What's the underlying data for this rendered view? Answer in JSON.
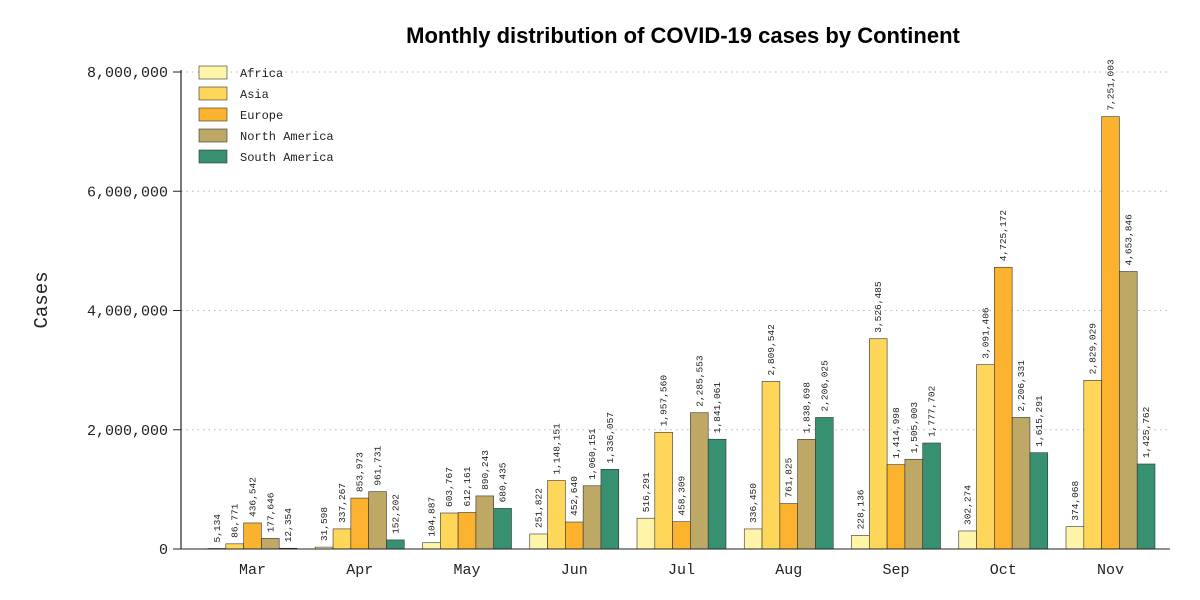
{
  "chart_data": {
    "type": "bar",
    "title": "Monthly distribution of COVID-19 cases by Continent",
    "xlabel": "",
    "ylabel": "Cases",
    "ylim": [
      0,
      8000000
    ],
    "yticks": [
      0,
      2000000,
      4000000,
      6000000,
      8000000
    ],
    "ytick_labels": [
      "0",
      "2,000,000",
      "4,000,000",
      "6,000,000",
      "8,000,000"
    ],
    "grid": true,
    "legend_position": "top-left",
    "categories": [
      "Mar",
      "Apr",
      "May",
      "Jun",
      "Jul",
      "Aug",
      "Sep",
      "Oct",
      "Nov"
    ],
    "series": [
      {
        "name": "Africa",
        "color": "#fff4a8",
        "values": [
          5134,
          31598,
          104887,
          251822,
          516291,
          336450,
          228136,
          302274,
          374068
        ],
        "labels": [
          "5,134",
          "31,598",
          "104,887",
          "251,822",
          "516,291",
          "336,450",
          "228,136",
          "302,274",
          "374,068"
        ]
      },
      {
        "name": "Asia",
        "color": "#fdd65a",
        "values": [
          86771,
          337267,
          603767,
          1148151,
          1957560,
          2809542,
          3526485,
          3091406,
          2829029
        ],
        "labels": [
          "86,771",
          "337,267",
          "603,767",
          "1,148,151",
          "1,957,560",
          "2,809,542",
          "3,526,485",
          "3,091,406",
          "2,829,029"
        ]
      },
      {
        "name": "Europe",
        "color": "#fbb32f",
        "values": [
          436542,
          853973,
          612161,
          452640,
          458309,
          761825,
          1414998,
          4725172,
          7251003
        ],
        "labels": [
          "436,542",
          "853,973",
          "612,161",
          "452,640",
          "458,309",
          "761,825",
          "1,414,998",
          "4,725,172",
          "7,251,003"
        ]
      },
      {
        "name": "North America",
        "color": "#bda866",
        "values": [
          177646,
          961731,
          890243,
          1060151,
          2285553,
          1838698,
          1505003,
          2206331,
          4653846
        ],
        "labels": [
          "177,646",
          "961,731",
          "890,243",
          "1,060,151",
          "2,285,553",
          "1,838,698",
          "1,505,003",
          "2,206,331",
          "4,653,846"
        ]
      },
      {
        "name": "South America",
        "color": "#379170",
        "values": [
          12354,
          152202,
          680435,
          1336057,
          1841061,
          2206025,
          1777702,
          1615291,
          1425762
        ],
        "labels": [
          "12,354",
          "152,202",
          "680,435",
          "1,336,057",
          "1,841,061",
          "2,206,025",
          "1,777,702",
          "1,615,291",
          "1,425,762"
        ]
      }
    ]
  }
}
